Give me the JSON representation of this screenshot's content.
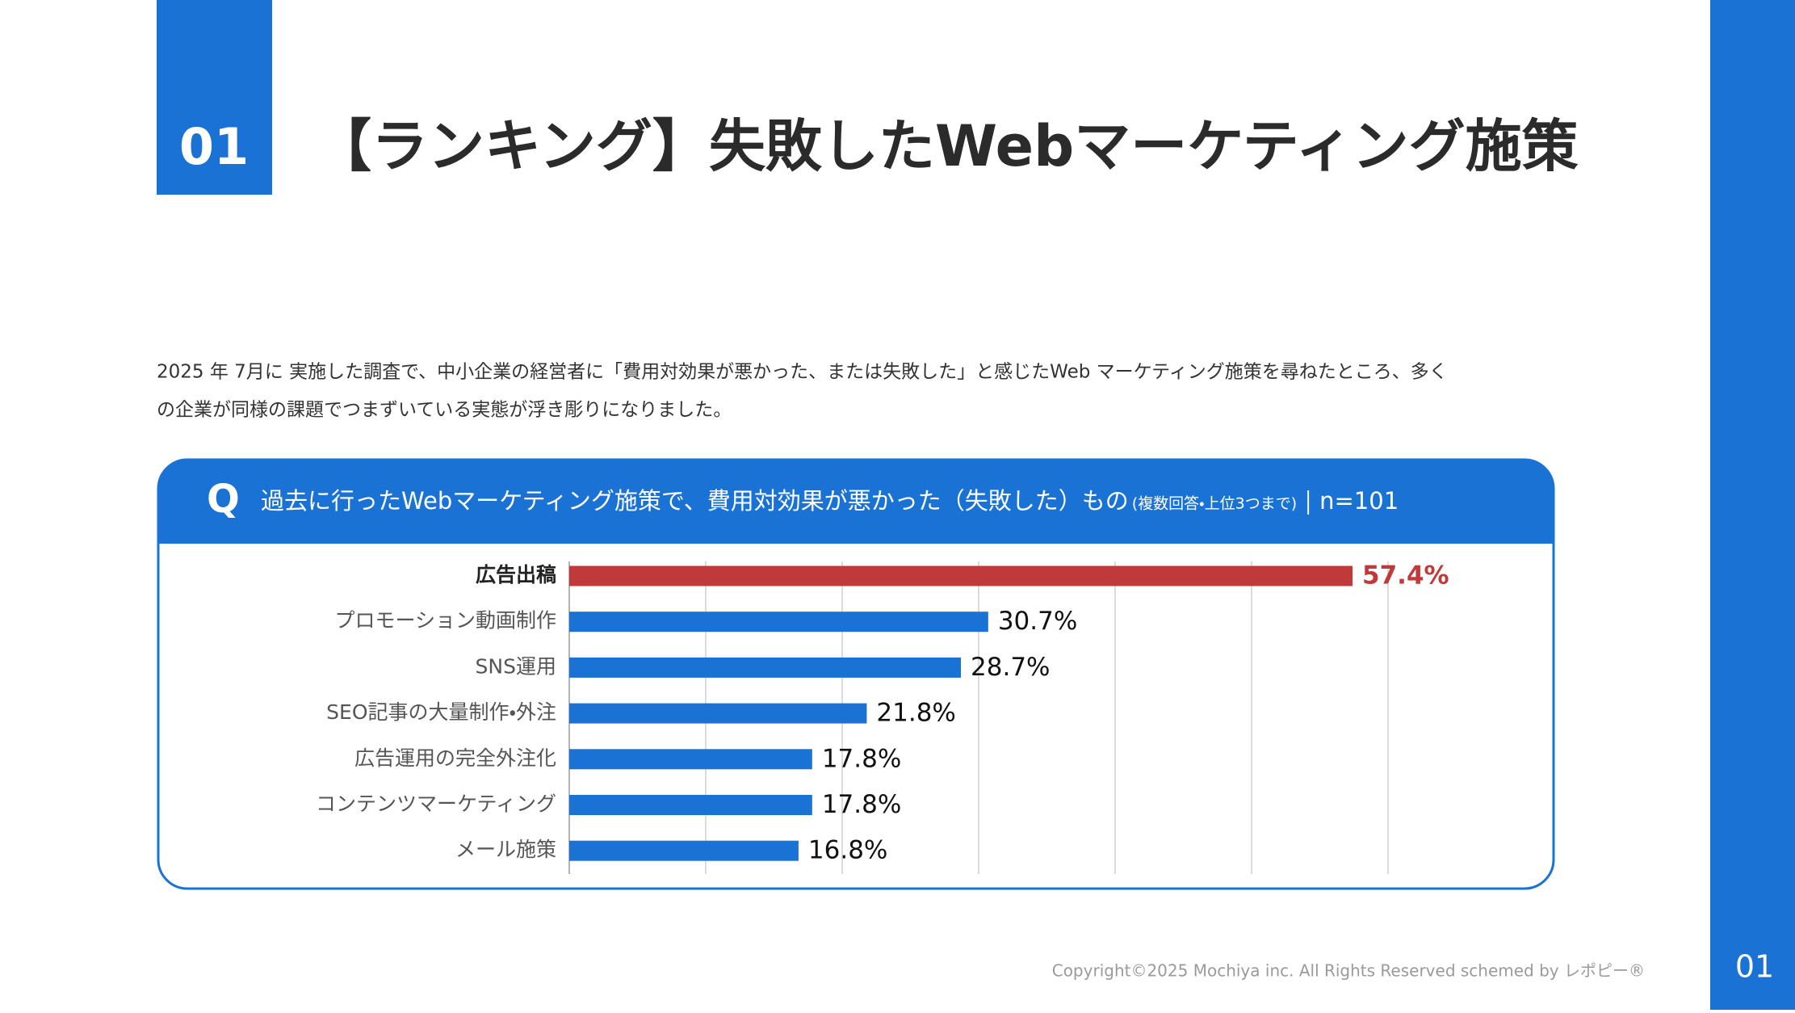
{
  "header": {
    "number": "01",
    "title": "【ランキング】失敗したWebマーケティング施策"
  },
  "description": [
    "2025 年 7月に 実施した調査で、中小企業の経営者に「費用対効果が悪かった、または失敗した」と感じたWeb マーケティング施策を尋ねたところ、多く",
    "の企業が同様の課題でつまずいている実態が浮き彫りになりました。"
  ],
  "question": {
    "mark": "Q",
    "text": "過去に行ったWebマーケティング施策で、費用対効果が悪かった（失敗した）もの",
    "note": "(複数回答・上位3つまで)",
    "n": "n=101"
  },
  "chart_data": {
    "type": "bar",
    "orientation": "horizontal",
    "categories": [
      "広告出稿",
      "プロモーション動画制作",
      "SNS運用",
      "SEO記事の大量制作・外注",
      "広告運用の完全外注化",
      "コンテンツマーケティング",
      "メール施策"
    ],
    "values": [
      57.4,
      30.7,
      28.7,
      21.8,
      17.8,
      17.8,
      16.8
    ],
    "value_labels": [
      "57.4%",
      "30.7%",
      "28.7%",
      "21.8%",
      "17.8%",
      "17.8%",
      "16.8%"
    ],
    "colors": [
      "#c0393b",
      "#1a73d4",
      "#1a73d4",
      "#1a73d4",
      "#1a73d4",
      "#1a73d4",
      "#1a73d4"
    ],
    "xlim": [
      0,
      60
    ],
    "xticks": [
      0,
      10,
      20,
      30,
      40,
      50,
      60
    ],
    "grid": true,
    "tick_labels": false
  },
  "footer": {
    "copyright": "Copyright©2025 Mochiya inc. All Rights Reserved schemed by レポピー®",
    "page": "01"
  }
}
